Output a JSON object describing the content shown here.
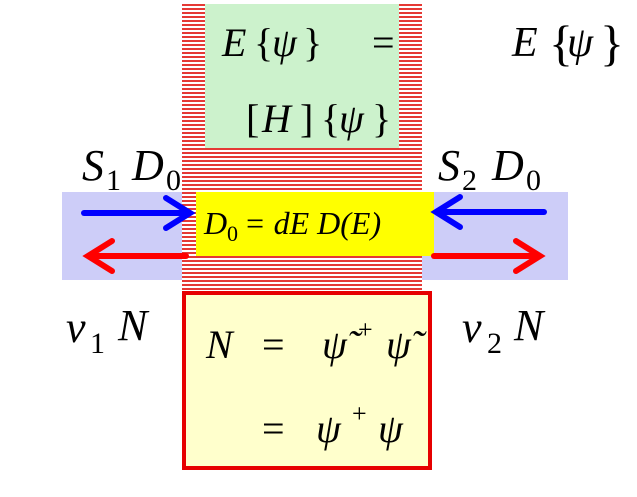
{
  "top_right": {
    "E": "E",
    "lbrace": "{",
    "psi": "ψ",
    "rbrace": "}"
  },
  "green_box": {
    "line1": {
      "E": "E",
      "lbrace": "{",
      "psi": "ψ",
      "rbrace": "}",
      "eq": "="
    },
    "line2": {
      "lbrack": "[",
      "H": "H",
      "rbrack": "]",
      "lbrace": "{",
      "psi": "ψ",
      "rbrace": "}"
    }
  },
  "left_source": {
    "S": "S",
    "sub": "1",
    "D": "D",
    "dsub": "0"
  },
  "right_source": {
    "S": "S",
    "sub": "2",
    "D": "D",
    "dsub": "0"
  },
  "yellow_box": {
    "D": "D",
    "dsub": "0",
    "rest": "= dE  D(E)"
  },
  "left_sink": {
    "nu": "ν",
    "sub": "1",
    "N": "N"
  },
  "right_sink": {
    "nu": "ν",
    "sub": "2",
    "N": "N"
  },
  "red_box": {
    "line1": {
      "N": "N",
      "eq": "=",
      "psi1": "ψ̃",
      "plus": "+",
      "psi2": "ψ̃"
    },
    "line2": {
      "eq": "=",
      "psi1": "ψ",
      "plus": "+",
      "psi2": "ψ"
    }
  },
  "colors": {
    "channel_hatch": "#e53935",
    "contact_band": "#cdcdf8",
    "green_box": "#ccf2cc",
    "yellow_box": "#ffff00",
    "red_box_fill": "#ffffcc",
    "red_box_border": "#e60000",
    "arrow_in": "#0000ff",
    "arrow_out": "#ff0000"
  }
}
